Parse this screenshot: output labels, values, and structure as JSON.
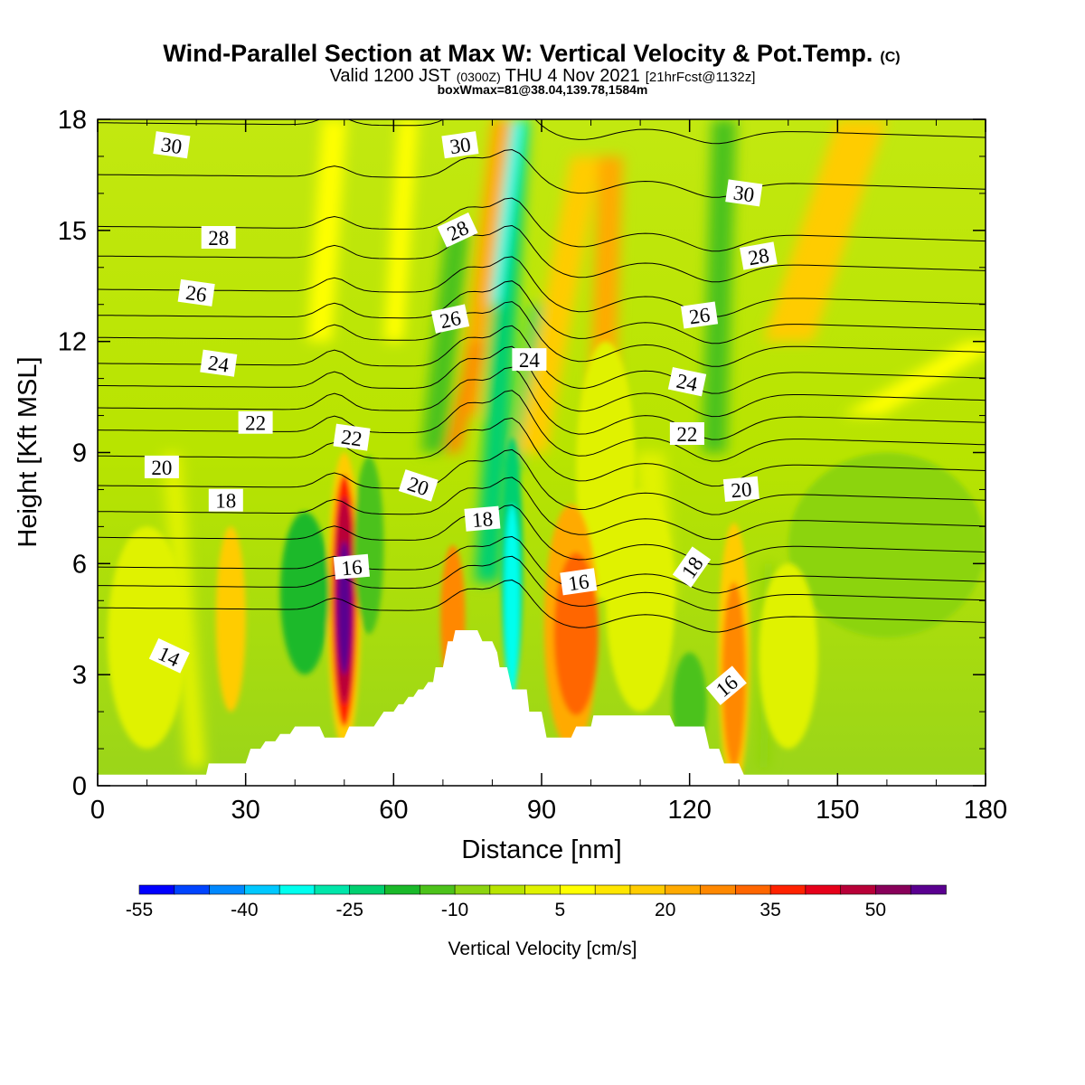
{
  "chart_data": {
    "type": "heatmap",
    "title": "Wind-Parallel Section at Max W: Vertical Velocity & Pot.Temp.",
    "title_mark": "(C)",
    "subtitle_prefix": "Valid 1200 JST",
    "subtitle_utc": "(0300Z)",
    "subtitle_date": "THU 4 Nov 2021",
    "subtitle_fcst": "[21hrFcst@1132z]",
    "subsubtitle": "boxWmax=81@38.04,139.78,1584m",
    "xlabel": "Distance [nm]",
    "ylabel": "Height [Kft MSL]",
    "xlim": [
      0,
      180
    ],
    "ylim": [
      0,
      18
    ],
    "x_ticks": [
      "0",
      "30",
      "60",
      "90",
      "120",
      "150",
      "180"
    ],
    "y_ticks": [
      "0",
      "3",
      "6",
      "9",
      "12",
      "15",
      "18"
    ],
    "colorbar": {
      "label": "Vertical Velocity [cm/s]",
      "tick_labels": [
        "-55",
        "-40",
        "-25",
        "-10",
        "5",
        "20",
        "35",
        "50"
      ],
      "colors": [
        "#0000ff",
        "#0044ff",
        "#0088ff",
        "#00c8ff",
        "#00ffee",
        "#00e6aa",
        "#00d070",
        "#1ab92a",
        "#4cc21a",
        "#8cd410",
        "#b8e400",
        "#e0f200",
        "#ffff00",
        "#ffe600",
        "#ffcc00",
        "#ffaa00",
        "#ff8800",
        "#ff6600",
        "#ff2200",
        "#e6001a",
        "#b80038",
        "#88005a",
        "#5a0090"
      ]
    },
    "field_base": {
      "y0": "#9ad51a",
      "y9": "#b8e400",
      "y18": "#c2e810"
    },
    "cells": [
      {
        "x": 97,
        "y": 4.1,
        "rx": 4.5,
        "ry": 2.2,
        "color": "#ff6600"
      },
      {
        "x": 96,
        "y": 4.3,
        "rx": 5.5,
        "ry": 3.3,
        "color": "#ffaa00"
      },
      {
        "x": 50,
        "y": 4.8,
        "rx": 1.4,
        "ry": 1.8,
        "color": "#5a0090"
      },
      {
        "x": 50,
        "y": 5.0,
        "rx": 2.0,
        "ry": 2.8,
        "color": "#b80038"
      },
      {
        "x": 50,
        "y": 5.0,
        "rx": 2.6,
        "ry": 3.4,
        "color": "#ff2200"
      },
      {
        "x": 50,
        "y": 5.0,
        "rx": 3.4,
        "ry": 4.0,
        "color": "#ffcc00"
      },
      {
        "x": 72,
        "y": 4.5,
        "rx": 2.5,
        "ry": 2.0,
        "color": "#ff8800"
      },
      {
        "x": 129,
        "y": 3.0,
        "rx": 2.4,
        "ry": 2.5,
        "color": "#ff8800"
      },
      {
        "x": 129,
        "y": 3.5,
        "rx": 3.2,
        "ry": 3.6,
        "color": "#ffcc00"
      },
      {
        "x": 27,
        "y": 4.5,
        "rx": 3.0,
        "ry": 2.5,
        "color": "#ffcc00"
      },
      {
        "x": 84,
        "y": 5.0,
        "rx": 1.6,
        "ry": 2.6,
        "color": "#00ffee"
      },
      {
        "x": 84,
        "y": 6.0,
        "rx": 2.2,
        "ry": 3.4,
        "color": "#00d070"
      },
      {
        "x": 42,
        "y": 5.2,
        "rx": 5.0,
        "ry": 2.2,
        "color": "#1ab92a"
      },
      {
        "x": 55,
        "y": 6.5,
        "rx": 3.0,
        "ry": 2.4,
        "color": "#4cc21a"
      },
      {
        "x": 120,
        "y": 2.2,
        "rx": 3.5,
        "ry": 1.4,
        "color": "#4cc21a"
      },
      {
        "x": 10,
        "y": 4.0,
        "rx": 8.0,
        "ry": 3.0,
        "color": "#e0f200"
      },
      {
        "x": 140,
        "y": 3.5,
        "rx": 6.0,
        "ry": 2.5,
        "color": "#e0f200"
      },
      {
        "x": 110,
        "y": 5.0,
        "rx": 7.0,
        "ry": 3.0,
        "color": "#e0f200"
      },
      {
        "x": 160,
        "y": 6.5,
        "rx": 20.0,
        "ry": 2.5,
        "color": "#8cd410"
      },
      {
        "x": 103,
        "y": 8.5,
        "rx": 6.0,
        "ry": 3.5,
        "color": "#e0f200"
      }
    ],
    "bands": [
      {
        "x0": 79,
        "x1": 85,
        "y0": 5.5,
        "y1": 18,
        "w": 5,
        "color": "#00d070"
      },
      {
        "x0": 80.5,
        "x1": 85.5,
        "y0": 13,
        "y1": 18,
        "w": 2.5,
        "color": "#00ffee"
      },
      {
        "x0": 84.5,
        "x1": 89,
        "y0": 8.5,
        "y1": 13,
        "w": 2,
        "color": "#00d070"
      },
      {
        "x0": 75,
        "x1": 82,
        "y0": 10,
        "y1": 18,
        "w": 4,
        "color": "#ffaa00"
      },
      {
        "x0": 72,
        "x1": 77,
        "y0": 9,
        "y1": 12,
        "w": 3,
        "color": "#ff8800"
      },
      {
        "x0": 88,
        "x1": 99,
        "y0": 9,
        "y1": 17,
        "w": 6,
        "color": "#ffcc00"
      },
      {
        "x0": 102,
        "x1": 104,
        "y0": 9,
        "y1": 17,
        "w": 5,
        "color": "#ffaa00"
      },
      {
        "x0": 68,
        "x1": 73,
        "y0": 9,
        "y1": 15,
        "w": 5,
        "color": "#4cc21a"
      },
      {
        "x0": 125,
        "x1": 127,
        "y0": 9,
        "y1": 18,
        "w": 5,
        "color": "#4cc21a"
      },
      {
        "x0": 45,
        "x1": 48,
        "y0": 12,
        "y1": 18,
        "w": 5,
        "color": "#ffff00"
      },
      {
        "x0": 60,
        "x1": 63,
        "y0": 12,
        "y1": 18,
        "w": 4,
        "color": "#ffff00"
      },
      {
        "x0": 140,
        "x1": 155,
        "y0": 12,
        "y1": 18,
        "w": 10,
        "color": "#ffcc00"
      },
      {
        "x0": 155,
        "x1": 180,
        "y0": 10,
        "y1": 12,
        "w": 8,
        "color": "#ffff00"
      },
      {
        "x0": 114,
        "x1": 112,
        "y0": 5,
        "y1": 9,
        "w": 6,
        "color": "#e0f200"
      },
      {
        "x0": 20,
        "x1": 15,
        "y0": 0.5,
        "y1": 9,
        "w": 4,
        "color": "#e0f200"
      },
      {
        "x0": 135,
        "x1": 136,
        "y0": 0.5,
        "y1": 6,
        "w": 2,
        "color": "#8cd410"
      }
    ],
    "terrain": [
      [
        0,
        0.3
      ],
      [
        22,
        0.3
      ],
      [
        22.5,
        0.6
      ],
      [
        30,
        0.6
      ],
      [
        31,
        1.0
      ],
      [
        33,
        1.0
      ],
      [
        34,
        1.2
      ],
      [
        36,
        1.2
      ],
      [
        37,
        1.4
      ],
      [
        39,
        1.4
      ],
      [
        40,
        1.6
      ],
      [
        45,
        1.6
      ],
      [
        46,
        1.3
      ],
      [
        50,
        1.3
      ],
      [
        51,
        1.6
      ],
      [
        56,
        1.6
      ],
      [
        57,
        1.8
      ],
      [
        58,
        2.0
      ],
      [
        60,
        2.0
      ],
      [
        61,
        2.2
      ],
      [
        62,
        2.2
      ],
      [
        63,
        2.4
      ],
      [
        64,
        2.4
      ],
      [
        65,
        2.6
      ],
      [
        66,
        2.6
      ],
      [
        67,
        2.8
      ],
      [
        68,
        2.8
      ],
      [
        68.5,
        3.2
      ],
      [
        70,
        3.2
      ],
      [
        71,
        3.9
      ],
      [
        72,
        3.9
      ],
      [
        72.5,
        4.2
      ],
      [
        77,
        4.2
      ],
      [
        78,
        3.9
      ],
      [
        80,
        3.9
      ],
      [
        81,
        3.6
      ],
      [
        81.5,
        3.2
      ],
      [
        83,
        3.2
      ],
      [
        84,
        2.6
      ],
      [
        87,
        2.6
      ],
      [
        87.5,
        2.0
      ],
      [
        90,
        2.0
      ],
      [
        91,
        1.3
      ],
      [
        96,
        1.3
      ],
      [
        97,
        1.6
      ],
      [
        100,
        1.6
      ],
      [
        100.5,
        1.9
      ],
      [
        116,
        1.9
      ],
      [
        117,
        1.6
      ],
      [
        123,
        1.6
      ],
      [
        124,
        1.0
      ],
      [
        126,
        1.0
      ],
      [
        127,
        0.6
      ],
      [
        130,
        0.6
      ],
      [
        131,
        0.3
      ],
      [
        180,
        0.3
      ]
    ],
    "theta_levels": [
      14,
      15,
      16,
      17,
      18,
      19,
      20,
      21,
      22,
      23,
      24,
      25,
      26,
      27,
      28,
      29,
      30,
      31
    ],
    "theta_base_y": {
      "14": 4.7,
      "15": 5.3,
      "16": 5.8,
      "17": 6.6,
      "18": 7.3,
      "19": 8.0,
      "20": 8.8,
      "21": 9.5,
      "22": 10.1,
      "23": 10.7,
      "24": 11.3,
      "25": 12.0,
      "26": 12.6,
      "27": 13.3,
      "28": 14.2,
      "29": 15.0,
      "30": 16.4,
      "31": 17.8
    },
    "theta_labels": [
      {
        "text": "30",
        "x": 15,
        "y": 17.3,
        "angle": 8
      },
      {
        "text": "30",
        "x": 73.5,
        "y": 17.3,
        "angle": -8
      },
      {
        "text": "30",
        "x": 131,
        "y": 16.0,
        "angle": 8
      },
      {
        "text": "28",
        "x": 24.5,
        "y": 14.8,
        "angle": 0
      },
      {
        "text": "28",
        "x": 73,
        "y": 15.0,
        "angle": -25
      },
      {
        "text": "28",
        "x": 134,
        "y": 14.3,
        "angle": -10
      },
      {
        "text": "26",
        "x": 20,
        "y": 13.3,
        "angle": 8
      },
      {
        "text": "26",
        "x": 71.5,
        "y": 12.6,
        "angle": -12
      },
      {
        "text": "26",
        "x": 122,
        "y": 12.7,
        "angle": -8
      },
      {
        "text": "24",
        "x": 24.5,
        "y": 11.4,
        "angle": 8
      },
      {
        "text": "24",
        "x": 87.5,
        "y": 11.5,
        "angle": 0
      },
      {
        "text": "24",
        "x": 119.5,
        "y": 10.9,
        "angle": 12
      },
      {
        "text": "22",
        "x": 32,
        "y": 9.8,
        "angle": 0
      },
      {
        "text": "22",
        "x": 51.5,
        "y": 9.4,
        "angle": 8
      },
      {
        "text": "22",
        "x": 119.5,
        "y": 9.5,
        "angle": 0
      },
      {
        "text": "20",
        "x": 13,
        "y": 8.6,
        "angle": 0
      },
      {
        "text": "20",
        "x": 65,
        "y": 8.1,
        "angle": 18
      },
      {
        "text": "20",
        "x": 130.5,
        "y": 8.0,
        "angle": -5
      },
      {
        "text": "18",
        "x": 26,
        "y": 7.7,
        "angle": 0
      },
      {
        "text": "18",
        "x": 78,
        "y": 7.2,
        "angle": -5
      },
      {
        "text": "18",
        "x": 120.5,
        "y": 5.9,
        "angle": -55
      },
      {
        "text": "16",
        "x": 51.5,
        "y": 5.9,
        "angle": -5
      },
      {
        "text": "16",
        "x": 97.5,
        "y": 5.5,
        "angle": -8
      },
      {
        "text": "16",
        "x": 127.5,
        "y": 2.7,
        "angle": -40
      },
      {
        "text": "14",
        "x": 14.5,
        "y": 3.5,
        "angle": 25
      }
    ]
  }
}
